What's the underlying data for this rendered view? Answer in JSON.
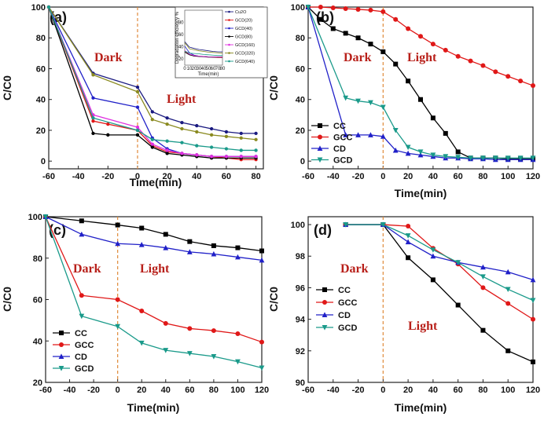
{
  "chart_data": [
    {
      "panel": "(a)",
      "type": "line",
      "xlabel": "Time(min)",
      "ylabel": "C/C0",
      "xlim": [
        -60,
        85
      ],
      "ylim": [
        -5,
        100
      ],
      "xticks": [
        -60,
        -40,
        -20,
        0,
        20,
        40,
        60,
        80
      ],
      "yticks": [
        0,
        20,
        40,
        60,
        80,
        100
      ],
      "annotations": [
        "Dark",
        "Light"
      ],
      "series": [
        {
          "name": "Cu2O",
          "color": "#1a1a80",
          "x": [
            -60,
            -30,
            0,
            10,
            20,
            30,
            40,
            50,
            60,
            70,
            80
          ],
          "values": [
            100,
            57,
            48,
            32,
            28,
            25,
            23,
            21,
            19,
            18,
            18
          ]
        },
        {
          "name": "GCD(20)",
          "color": "#e01818",
          "x": [
            -60,
            -30,
            -20,
            0,
            10,
            20,
            30,
            40,
            50,
            60,
            70,
            80
          ],
          "values": [
            100,
            26,
            24,
            20,
            10,
            6,
            5,
            4,
            3,
            2,
            1,
            1
          ]
        },
        {
          "name": "GCD(40)",
          "color": "#2020c8",
          "x": [
            -60,
            -30,
            0,
            10,
            20,
            30,
            40,
            50,
            60,
            70,
            80
          ],
          "values": [
            100,
            41,
            35,
            15,
            8,
            5,
            4,
            3,
            3,
            3,
            3
          ]
        },
        {
          "name": "GCD(80)",
          "color": "#000000",
          "x": [
            -60,
            -30,
            -20,
            0,
            10,
            20,
            30,
            40,
            50,
            60,
            70,
            80
          ],
          "values": [
            100,
            18,
            17,
            17,
            9,
            5,
            4,
            3,
            2,
            2,
            2,
            2
          ]
        },
        {
          "name": "GCD(160)",
          "color": "#e030e0",
          "x": [
            -60,
            -30,
            0,
            10,
            20,
            30,
            40,
            50,
            60,
            70,
            80
          ],
          "values": [
            100,
            30,
            22,
            11,
            7,
            5,
            4,
            3,
            3,
            3,
            3
          ]
        },
        {
          "name": "GCD(320)",
          "color": "#8a8a20",
          "x": [
            -60,
            -30,
            0,
            10,
            20,
            30,
            40,
            50,
            60,
            70,
            80
          ],
          "values": [
            100,
            56,
            45,
            27,
            24,
            21,
            19,
            17,
            16,
            15,
            14
          ]
        },
        {
          "name": "GCD(640)",
          "color": "#1a9a8a",
          "x": [
            -60,
            -30,
            0,
            10,
            20,
            30,
            40,
            50,
            60,
            70,
            80
          ],
          "values": [
            100,
            28,
            20,
            14,
            13,
            12,
            10,
            9,
            8,
            7,
            7
          ]
        }
      ],
      "inset": {
        "xlabel": "Time(min)",
        "ylabel": "Degradation efficiency %",
        "xticks": [
          0,
          10,
          20,
          30,
          40,
          50,
          60,
          70,
          80
        ],
        "yticks": [
          20,
          40,
          60,
          80
        ],
        "xlim": [
          0,
          80
        ],
        "ylim": [
          10,
          100
        ]
      }
    },
    {
      "panel": "(b)",
      "type": "line",
      "xlabel": "Time(min)",
      "ylabel": "C/C0",
      "xlim": [
        -60,
        120
      ],
      "ylim": [
        -5,
        100
      ],
      "xticks": [
        -60,
        -40,
        -20,
        0,
        20,
        40,
        60,
        80,
        100,
        120
      ],
      "yticks": [
        0,
        20,
        40,
        60,
        80,
        100
      ],
      "annotations": [
        "Dark",
        "Light"
      ],
      "series": [
        {
          "name": "CC",
          "color": "#000000",
          "marker": "square",
          "x": [
            -60,
            -50,
            -40,
            -30,
            -20,
            -10,
            0,
            10,
            20,
            30,
            40,
            50,
            60,
            70,
            80,
            90,
            100,
            110,
            120
          ],
          "values": [
            100,
            92,
            86,
            83,
            80,
            76,
            71,
            63,
            52,
            40,
            28,
            18,
            6,
            2,
            2,
            2,
            1.5,
            1.5,
            1.5
          ]
        },
        {
          "name": "GCC",
          "color": "#e01818",
          "marker": "circle",
          "x": [
            -60,
            -50,
            -40,
            -30,
            -20,
            -10,
            0,
            10,
            20,
            30,
            40,
            50,
            60,
            70,
            80,
            90,
            100,
            110,
            120
          ],
          "values": [
            100,
            100,
            99.5,
            99,
            98.5,
            98,
            97,
            92,
            86,
            81,
            76,
            72,
            68,
            65,
            62,
            58,
            55,
            52,
            49
          ]
        },
        {
          "name": "CD",
          "color": "#2020c8",
          "marker": "triangle-up",
          "x": [
            -60,
            -30,
            -20,
            -10,
            0,
            10,
            20,
            30,
            40,
            50,
            60,
            70,
            80,
            90,
            100,
            110,
            120
          ],
          "values": [
            100,
            17,
            17,
            17,
            16,
            7,
            5,
            4,
            3,
            2,
            2,
            1.5,
            1.5,
            1,
            1,
            1,
            1
          ]
        },
        {
          "name": "GCD",
          "color": "#1a9a8a",
          "marker": "triangle-down",
          "x": [
            -60,
            -30,
            -20,
            -10,
            0,
            10,
            20,
            30,
            40,
            50,
            60,
            70,
            80,
            90,
            100,
            110,
            120
          ],
          "values": [
            100,
            41,
            39,
            38,
            35,
            20,
            9,
            6,
            4,
            3,
            2.5,
            2,
            2,
            2,
            2,
            2,
            2
          ]
        }
      ],
      "legend": "bottom-left"
    },
    {
      "panel": "(c)",
      "type": "line",
      "xlabel": "Time(min)",
      "ylabel": "C/C0",
      "xlim": [
        -60,
        120
      ],
      "ylim": [
        20,
        100
      ],
      "xticks": [
        -60,
        -40,
        -20,
        0,
        20,
        40,
        60,
        80,
        100,
        120
      ],
      "yticks": [
        20,
        40,
        60,
        80,
        100
      ],
      "annotations": [
        "Dark",
        "Light"
      ],
      "series": [
        {
          "name": "CC",
          "color": "#000000",
          "marker": "square",
          "x": [
            -60,
            -30,
            0,
            20,
            40,
            60,
            80,
            100,
            120
          ],
          "values": [
            100,
            98,
            96,
            94.5,
            91.5,
            88,
            86,
            85,
            83.5
          ]
        },
        {
          "name": "GCC",
          "color": "#e01818",
          "marker": "circle",
          "x": [
            -60,
            -30,
            0,
            20,
            40,
            60,
            80,
            100,
            120
          ],
          "values": [
            100,
            62,
            60,
            54.5,
            48.5,
            46,
            45,
            43.5,
            39.5
          ]
        },
        {
          "name": "CD",
          "color": "#2020c8",
          "marker": "triangle-up",
          "x": [
            -60,
            -30,
            0,
            20,
            40,
            60,
            80,
            100,
            120
          ],
          "values": [
            100,
            91.5,
            87,
            86.5,
            85,
            83,
            82,
            80.5,
            79
          ]
        },
        {
          "name": "GCD",
          "color": "#1a9a8a",
          "marker": "triangle-down",
          "x": [
            -60,
            -30,
            0,
            20,
            40,
            60,
            80,
            100,
            120
          ],
          "values": [
            100,
            52,
            47,
            39,
            35.5,
            34,
            32.5,
            30,
            27
          ]
        }
      ],
      "legend": "bottom-left"
    },
    {
      "panel": "(d)",
      "type": "line",
      "xlabel": "Time(min)",
      "ylabel": "C/C0",
      "xlim": [
        -60,
        120
      ],
      "ylim": [
        90,
        100.5
      ],
      "xticks": [
        -60,
        -40,
        -20,
        0,
        20,
        40,
        60,
        80,
        100,
        120
      ],
      "yticks": [
        90,
        92,
        94,
        96,
        98,
        100
      ],
      "annotations": [
        "Dark",
        "Light"
      ],
      "series": [
        {
          "name": "CC",
          "color": "#000000",
          "marker": "square",
          "x": [
            -30,
            0,
            20,
            40,
            60,
            80,
            100,
            120
          ],
          "values": [
            100,
            100,
            97.9,
            96.5,
            94.9,
            93.3,
            92.0,
            91.3
          ]
        },
        {
          "name": "GCC",
          "color": "#e01818",
          "marker": "circle",
          "x": [
            -30,
            0,
            20,
            40,
            60,
            80,
            100,
            120
          ],
          "values": [
            100,
            100,
            99.9,
            98.5,
            97.5,
            96.0,
            95.0,
            94.0
          ]
        },
        {
          "name": "CD",
          "color": "#2020c8",
          "marker": "triangle-up",
          "x": [
            -30,
            0,
            20,
            40,
            60,
            80,
            100,
            120
          ],
          "values": [
            100,
            100,
            98.9,
            98.0,
            97.6,
            97.3,
            97.0,
            96.5
          ]
        },
        {
          "name": "GCD",
          "color": "#1a9a8a",
          "marker": "triangle-down",
          "x": [
            -30,
            0,
            20,
            40,
            60,
            80,
            100,
            120
          ],
          "values": [
            100,
            100,
            99.3,
            98.4,
            97.6,
            96.7,
            95.9,
            95.2
          ]
        }
      ],
      "legend": "middle-left"
    }
  ]
}
